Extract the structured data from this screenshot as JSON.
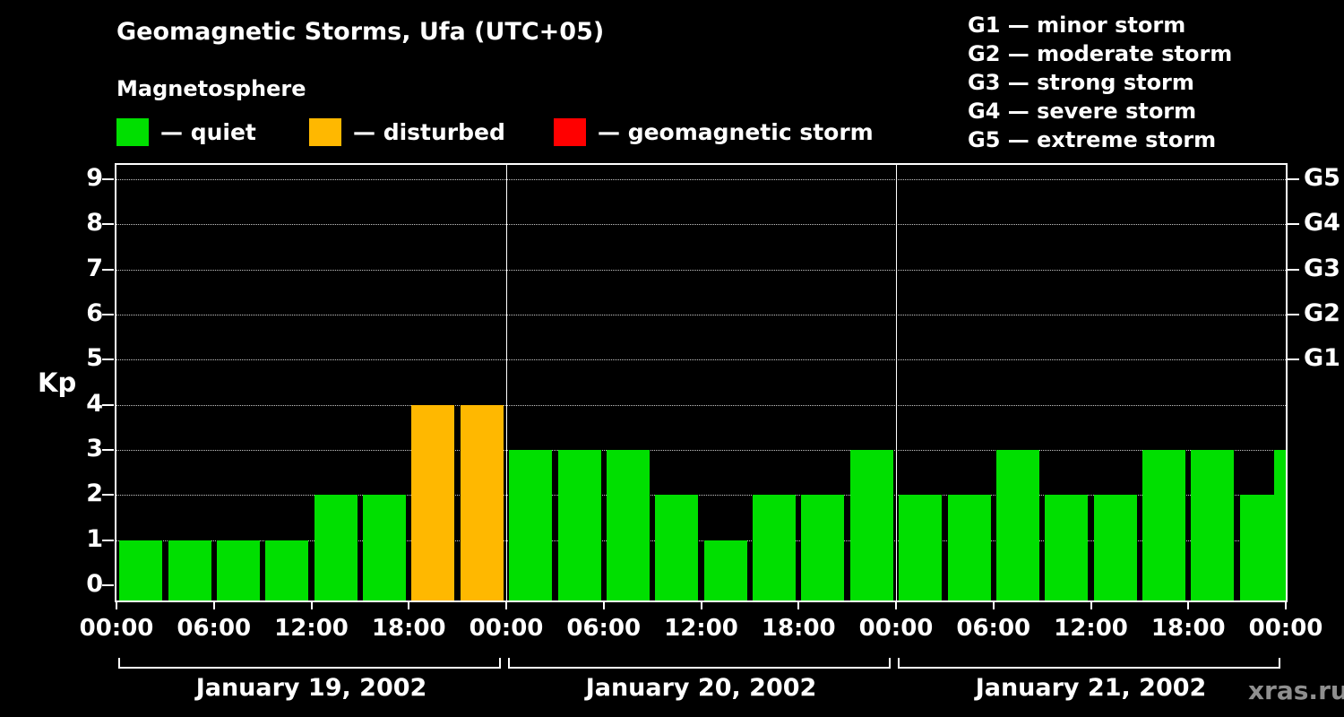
{
  "title": "Geomagnetic Storms, Ufa (UTC+05)",
  "subtitle": "Magnetosphere",
  "legend": {
    "quiet_label": "— quiet",
    "disturbed_label": "— disturbed",
    "storm_label": "— geomagnetic storm"
  },
  "g_legend": [
    "G1 — minor storm",
    "G2 — moderate storm",
    "G3 — strong storm",
    "G4 — severe storm",
    "G5 — extreme storm"
  ],
  "watermark": "xras.ru",
  "colors": {
    "quiet": "#00DF00",
    "disturbed": "#FFB800",
    "storm": "#FF0000",
    "background": "#000000",
    "axis": "#FFFFFF"
  },
  "chart_data": {
    "type": "bar",
    "title": "Geomagnetic Storms, Ufa (UTC+05)",
    "ylabel": "Kp",
    "ylim": [
      0,
      9
    ],
    "yticks": [
      0,
      1,
      2,
      3,
      4,
      5,
      6,
      7,
      8,
      9
    ],
    "right_axis_ticks": [
      {
        "label": "G1",
        "value": 5
      },
      {
        "label": "G2",
        "value": 6
      },
      {
        "label": "G3",
        "value": 7
      },
      {
        "label": "G4",
        "value": 8
      },
      {
        "label": "G5",
        "value": 9
      }
    ],
    "bar_interval_hours": 3,
    "time_labels": [
      "00:00",
      "06:00",
      "12:00",
      "18:00"
    ],
    "end_time_label": "00:00",
    "days": [
      {
        "date": "January 19, 2002",
        "values": [
          1,
          1,
          1,
          1,
          2,
          2,
          4,
          4
        ]
      },
      {
        "date": "January 20, 2002",
        "values": [
          3,
          3,
          3,
          2,
          1,
          2,
          2,
          3
        ]
      },
      {
        "date": "January 21, 2002",
        "values": [
          2,
          2,
          3,
          2,
          2,
          3,
          3,
          2
        ]
      }
    ],
    "next_period_partial_value": 3,
    "color_rule": {
      "quiet_max": 3,
      "disturbed_value": 4,
      "storm_min": 5
    },
    "grid": true,
    "legend_position": "top"
  }
}
